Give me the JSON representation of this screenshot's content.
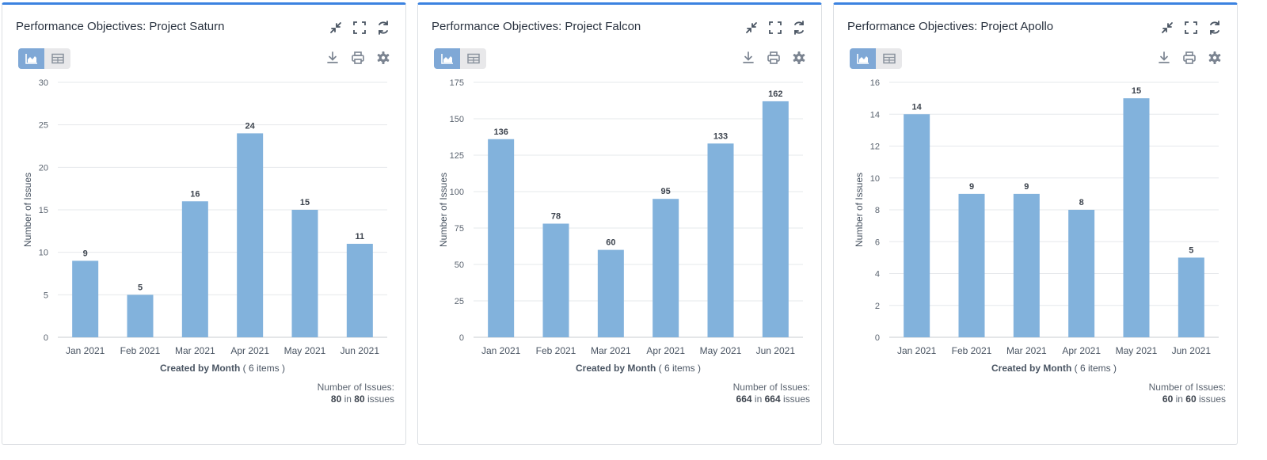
{
  "colors": {
    "bar": "#82b2dc",
    "accent": "#3b82e0",
    "grid": "#e6e8eb"
  },
  "toolbar_icons": [
    "collapse-icon",
    "fullscreen-icon",
    "refresh-icon",
    "download-icon",
    "print-icon",
    "gear-icon",
    "chart-view-icon",
    "table-view-icon"
  ],
  "panels": [
    {
      "title": "Performance Objectives: Project Saturn",
      "footer_label": "Number of Issues:",
      "footer_count": "80",
      "footer_in": "in",
      "footer_total": "80",
      "footer_unit": "issues"
    },
    {
      "title": "Performance Objectives: Project Falcon",
      "footer_label": "Number of Issues:",
      "footer_count": "664",
      "footer_in": "in",
      "footer_total": "664",
      "footer_unit": "issues"
    },
    {
      "title": "Performance Objectives: Project Apollo",
      "footer_label": "Number of Issues:",
      "footer_count": "60",
      "footer_in": "in",
      "footer_total": "60",
      "footer_unit": "issues"
    }
  ],
  "chart_data": [
    {
      "type": "bar",
      "title": "Performance Objectives: Project Saturn",
      "categories": [
        "Jan 2021",
        "Feb 2021",
        "Mar 2021",
        "Apr 2021",
        "May 2021",
        "Jun 2021"
      ],
      "values": [
        9,
        5,
        16,
        24,
        15,
        11
      ],
      "xlabel": "Created by Month",
      "xlabel_suffix": "( 6 items )",
      "ylabel": "Number of Issues",
      "ylim": [
        0,
        30
      ],
      "yticks": [
        0,
        5,
        10,
        15,
        20,
        25,
        30
      ],
      "grid": true,
      "data_labels": true
    },
    {
      "type": "bar",
      "title": "Performance Objectives: Project Falcon",
      "categories": [
        "Jan 2021",
        "Feb 2021",
        "Mar 2021",
        "Apr 2021",
        "May 2021",
        "Jun 2021"
      ],
      "values": [
        136,
        78,
        60,
        95,
        133,
        162
      ],
      "xlabel": "Created by Month",
      "xlabel_suffix": "( 6 items )",
      "ylabel": "Number of Issues",
      "ylim": [
        0,
        175
      ],
      "yticks": [
        0,
        25,
        50,
        75,
        100,
        125,
        150,
        175
      ],
      "grid": true,
      "data_labels": true
    },
    {
      "type": "bar",
      "title": "Performance Objectives: Project Apollo",
      "categories": [
        "Jan 2021",
        "Feb 2021",
        "Mar 2021",
        "Apr 2021",
        "May 2021",
        "Jun 2021"
      ],
      "values": [
        14,
        9,
        9,
        8,
        15,
        5
      ],
      "xlabel": "Created by Month",
      "xlabel_suffix": "( 6 items )",
      "ylabel": "Number of Issues",
      "ylim": [
        0,
        16
      ],
      "yticks": [
        0,
        2,
        4,
        6,
        8,
        10,
        12,
        14,
        16
      ],
      "grid": true,
      "data_labels": true
    }
  ]
}
